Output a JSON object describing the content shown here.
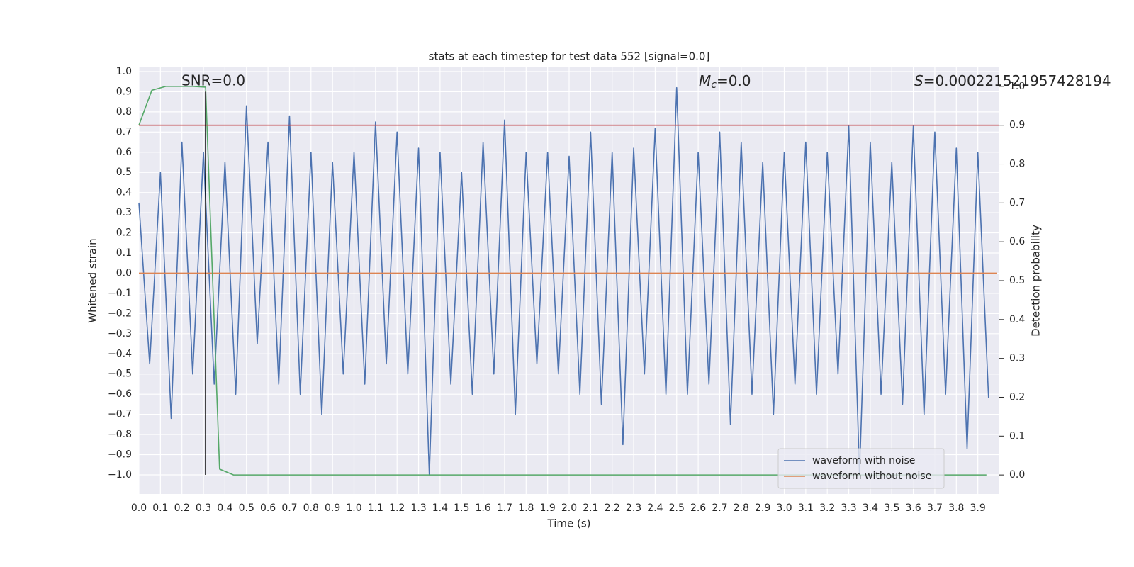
{
  "chart_data": {
    "type": "line",
    "title": "stats at each timestep for test data 552 [signal=0.0]",
    "x_label": "Time (s)",
    "y_label": "Whitened strain",
    "y2_label": "Detection probability",
    "annotations": {
      "snr": "SNR=0.0",
      "mc": {
        "base": "M",
        "sub": "c",
        "rest": "=0.0"
      },
      "s": {
        "italic": "S",
        "rest": "=0.000221521957428194"
      }
    },
    "grid": true,
    "legend": "lower right",
    "xlim": [
      0,
      4.0
    ],
    "ylim": [
      -1.095,
      1.021
    ],
    "y2lim": [
      -0.049,
      1.049
    ],
    "xticks": [
      {
        "value": 0.0,
        "label": "0.0"
      },
      {
        "value": 0.1,
        "label": "0.1"
      },
      {
        "value": 0.2,
        "label": "0.2"
      },
      {
        "value": 0.3,
        "label": "0.3"
      },
      {
        "value": 0.4,
        "label": "0.4"
      },
      {
        "value": 0.5,
        "label": "0.5"
      },
      {
        "value": 0.6,
        "label": "0.6"
      },
      {
        "value": 0.7,
        "label": "0.7"
      },
      {
        "value": 0.8,
        "label": "0.8"
      },
      {
        "value": 0.9,
        "label": "0.9"
      },
      {
        "value": 1.0,
        "label": "1.0"
      },
      {
        "value": 1.1,
        "label": "1.1"
      },
      {
        "value": 1.2,
        "label": "1.2"
      },
      {
        "value": 1.3,
        "label": "1.3"
      },
      {
        "value": 1.4,
        "label": "1.4"
      },
      {
        "value": 1.5,
        "label": "1.5"
      },
      {
        "value": 1.6,
        "label": "1.6"
      },
      {
        "value": 1.7,
        "label": "1.7"
      },
      {
        "value": 1.8,
        "label": "1.8"
      },
      {
        "value": 1.9,
        "label": "1.9"
      },
      {
        "value": 2.0,
        "label": "2.0"
      },
      {
        "value": 2.1,
        "label": "2.1"
      },
      {
        "value": 2.2,
        "label": "2.2"
      },
      {
        "value": 2.3,
        "label": "2.3"
      },
      {
        "value": 2.4,
        "label": "2.4"
      },
      {
        "value": 2.5,
        "label": "2.5"
      },
      {
        "value": 2.6,
        "label": "2.6"
      },
      {
        "value": 2.7,
        "label": "2.7"
      },
      {
        "value": 2.8,
        "label": "2.8"
      },
      {
        "value": 2.9,
        "label": "2.9"
      },
      {
        "value": 3.0,
        "label": "3.0"
      },
      {
        "value": 3.1,
        "label": "3.1"
      },
      {
        "value": 3.2,
        "label": "3.2"
      },
      {
        "value": 3.3,
        "label": "3.3"
      },
      {
        "value": 3.4,
        "label": "3.4"
      },
      {
        "value": 3.5,
        "label": "3.5"
      },
      {
        "value": 3.6,
        "label": "3.6"
      },
      {
        "value": 3.7,
        "label": "3.7"
      },
      {
        "value": 3.8,
        "label": "3.8"
      },
      {
        "value": 3.9,
        "label": "3.9"
      }
    ],
    "yticks": [
      {
        "value": -1.0,
        "label": "−1.0"
      },
      {
        "value": -0.9,
        "label": "−0.9"
      },
      {
        "value": -0.8,
        "label": "−0.8"
      },
      {
        "value": -0.7,
        "label": "−0.7"
      },
      {
        "value": -0.6,
        "label": "−0.6"
      },
      {
        "value": -0.5,
        "label": "−0.5"
      },
      {
        "value": -0.4,
        "label": "−0.4"
      },
      {
        "value": -0.3,
        "label": "−0.3"
      },
      {
        "value": -0.2,
        "label": "−0.2"
      },
      {
        "value": -0.1,
        "label": "−0.1"
      },
      {
        "value": 0.0,
        "label": "0.0"
      },
      {
        "value": 0.1,
        "label": "0.1"
      },
      {
        "value": 0.2,
        "label": "0.2"
      },
      {
        "value": 0.3,
        "label": "0.3"
      },
      {
        "value": 0.4,
        "label": "0.4"
      },
      {
        "value": 0.5,
        "label": "0.5"
      },
      {
        "value": 0.6,
        "label": "0.6"
      },
      {
        "value": 0.7,
        "label": "0.7"
      },
      {
        "value": 0.8,
        "label": "0.8"
      },
      {
        "value": 0.9,
        "label": "0.9"
      },
      {
        "value": 1.0,
        "label": "1.0"
      }
    ],
    "y2ticks": [
      {
        "value": 0.0,
        "label": "0.0"
      },
      {
        "value": 0.1,
        "label": "0.1"
      },
      {
        "value": 0.2,
        "label": "0.2"
      },
      {
        "value": 0.3,
        "label": "0.3"
      },
      {
        "value": 0.4,
        "label": "0.4"
      },
      {
        "value": 0.5,
        "label": "0.5"
      },
      {
        "value": 0.6,
        "label": "0.6"
      },
      {
        "value": 0.7,
        "label": "0.7"
      },
      {
        "value": 0.8,
        "label": "0.8"
      },
      {
        "value": 0.9,
        "label": "0.9"
      },
      {
        "value": 1.0,
        "label": "1.0"
      }
    ],
    "series": [
      {
        "name": "waveform with noise",
        "color": "#4c72b0",
        "x": [
          0,
          0.05,
          0.1,
          0.15,
          0.2,
          0.25,
          0.3,
          0.35,
          0.4,
          0.45,
          0.5,
          0.55,
          0.6,
          0.65,
          0.7,
          0.75,
          0.8,
          0.85,
          0.9,
          0.95,
          1.0,
          1.05,
          1.1,
          1.15,
          1.2,
          1.25,
          1.3,
          1.35,
          1.4,
          1.45,
          1.5,
          1.55,
          1.6,
          1.65,
          1.7,
          1.75,
          1.8,
          1.85,
          1.9,
          1.95,
          2.0,
          2.05,
          2.1,
          2.15,
          2.2,
          2.25,
          2.3,
          2.35,
          2.4,
          2.45,
          2.5,
          2.55,
          2.6,
          2.65,
          2.7,
          2.75,
          2.8,
          2.85,
          2.9,
          2.95,
          3.0,
          3.05,
          3.1,
          3.15,
          3.2,
          3.25,
          3.3,
          3.35,
          3.4,
          3.45,
          3.5,
          3.55,
          3.6,
          3.65,
          3.7,
          3.75,
          3.8,
          3.85,
          3.9,
          3.95
        ],
        "values": [
          0.35,
          -0.45,
          0.5,
          -0.72,
          0.65,
          -0.5,
          0.6,
          -0.55,
          0.55,
          -0.6,
          0.83,
          -0.35,
          0.65,
          -0.55,
          0.78,
          -0.6,
          0.6,
          -0.7,
          0.55,
          -0.5,
          0.6,
          -0.55,
          0.75,
          -0.45,
          0.7,
          -0.5,
          0.62,
          -1.0,
          0.6,
          -0.55,
          0.5,
          -0.6,
          0.65,
          -0.5,
          0.76,
          -0.7,
          0.6,
          -0.45,
          0.6,
          -0.5,
          0.58,
          -0.6,
          0.7,
          -0.65,
          0.6,
          -0.85,
          0.62,
          -0.5,
          0.72,
          -0.6,
          0.92,
          -0.6,
          0.6,
          -0.55,
          0.7,
          -0.75,
          0.65,
          -0.6,
          0.55,
          -0.7,
          0.6,
          -0.55,
          0.65,
          -0.6,
          0.6,
          -0.5,
          0.73,
          -1.0,
          0.65,
          -0.6,
          0.55,
          -0.65,
          0.73,
          -0.7,
          0.7,
          -0.6,
          0.62,
          -0.87,
          0.6,
          -0.62
        ]
      },
      {
        "name": "waveform without noise",
        "color": "#dd8452",
        "x": [
          0,
          3.99
        ],
        "values": [
          0,
          0
        ]
      },
      {
        "color": "#55a868",
        "axis": "y2",
        "x": [
          0,
          0.06,
          0.125,
          0.19,
          0.25,
          0.31,
          0.375,
          0.44,
          3.94
        ],
        "values": [
          0.9,
          0.99,
          1.0,
          1.0,
          1.0,
          0.998,
          0.015,
          0.0,
          0.0
        ]
      }
    ],
    "threshold": {
      "value": 0.9,
      "axis": "y2",
      "color": "#c44e52"
    },
    "marker_line": {
      "x": 0.31,
      "ymin": -1.0,
      "ymax": 0.9,
      "color": "#000000"
    }
  }
}
